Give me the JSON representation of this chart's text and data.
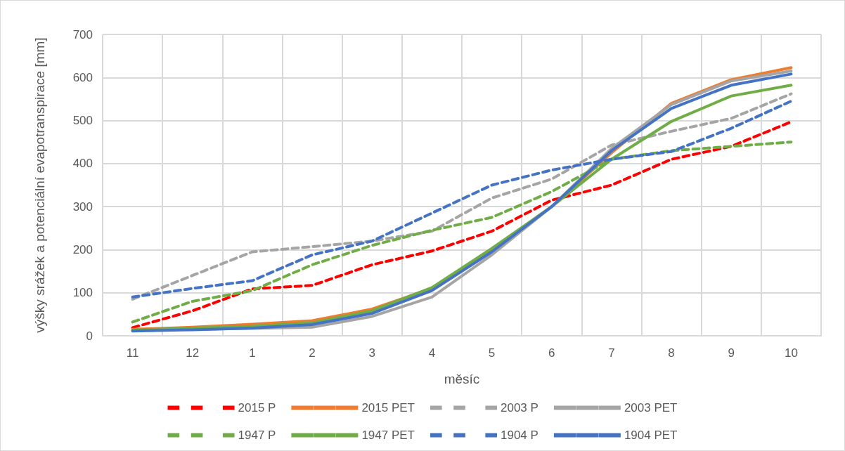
{
  "chart_data": {
    "type": "line",
    "xlabel": "měsíc",
    "ylabel": "výšky srážek a potenciální evapotranspirace [mm]",
    "categories": [
      "11",
      "12",
      "1",
      "2",
      "3",
      "4",
      "5",
      "6",
      "7",
      "8",
      "9",
      "10"
    ],
    "ylim": [
      0,
      700
    ],
    "yticks": [
      0,
      100,
      200,
      300,
      400,
      500,
      600,
      700
    ],
    "grid": true,
    "legend": "bottom",
    "marker": "none",
    "series": [
      {
        "name": "2015 P",
        "color": "#ff0000",
        "line_style": "dashed",
        "values": [
          19,
          58,
          109,
          117,
          165,
          197,
          243,
          315,
          350,
          410,
          440,
          497
        ]
      },
      {
        "name": "2015 PET",
        "color": "#ed7d31",
        "line_style": "solid",
        "values": [
          15,
          20,
          27,
          35,
          62,
          110,
          200,
          300,
          425,
          540,
          595,
          623
        ]
      },
      {
        "name": "2003 P",
        "color": "#a5a5a5",
        "line_style": "dashed",
        "values": [
          85,
          140,
          195,
          207,
          220,
          243,
          320,
          364,
          443,
          475,
          505,
          562
        ]
      },
      {
        "name": "2003 PET",
        "color": "#a5a5a5",
        "line_style": "solid",
        "values": [
          12,
          15,
          17,
          20,
          45,
          90,
          188,
          300,
          435,
          537,
          592,
          615
        ]
      },
      {
        "name": "1947 P",
        "color": "#70ad47",
        "line_style": "dashed",
        "values": [
          32,
          80,
          105,
          165,
          210,
          245,
          275,
          335,
          410,
          430,
          440,
          450
        ]
      },
      {
        "name": "1947 PET",
        "color": "#70ad47",
        "line_style": "solid",
        "values": [
          13,
          18,
          22,
          30,
          58,
          112,
          203,
          300,
          410,
          498,
          557,
          582
        ]
      },
      {
        "name": "1904 P",
        "color": "#4472c4",
        "line_style": "dashed",
        "values": [
          90,
          110,
          128,
          188,
          220,
          285,
          350,
          385,
          410,
          428,
          482,
          545
        ]
      },
      {
        "name": "1904 PET",
        "color": "#4472c4",
        "line_style": "solid",
        "values": [
          11,
          14,
          18,
          26,
          52,
          105,
          195,
          300,
          430,
          528,
          582,
          608
        ]
      }
    ]
  }
}
